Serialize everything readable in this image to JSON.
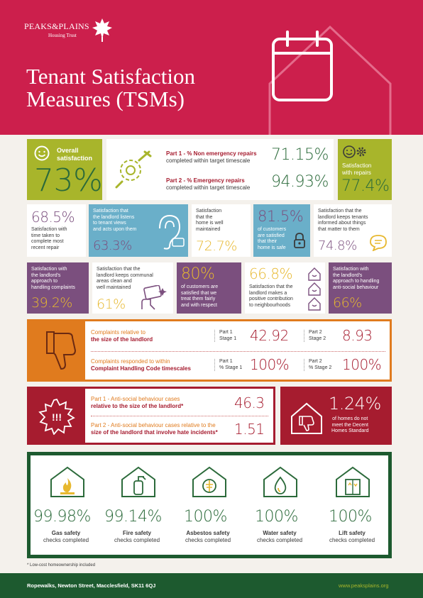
{
  "header": {
    "logo_brand": "PEAKS&PLAINS",
    "logo_sub": "Housing Trust",
    "title_line1": "Tenant Satisfaction",
    "title_line2": "Measures (TSMs)"
  },
  "overall": {
    "label": "Overall satisfaction",
    "value": "73%"
  },
  "repairs": {
    "part1_label_a": "Part 1 - % Non emergency repairs",
    "part1_label_b": "completed within target timescale",
    "part1_value": "71.15%",
    "part2_label_a": "Part 2 - % Emergency repairs",
    "part2_label_b": "completed within target timescale",
    "part2_value": "94.93%"
  },
  "with_repairs": {
    "label_a": "Satisfaction",
    "label_b": "with repairs",
    "value": "77.4%"
  },
  "row2": {
    "time_repair": {
      "value": "68.5%",
      "label_a": "Satisfaction with",
      "label_b": "time taken to",
      "label_c": "complete most",
      "label_d": "recent repair"
    },
    "listens": {
      "label_a": "Satisfaction that",
      "label_b": "the landlord listens",
      "label_c": "to tenant views",
      "label_d": "and acts upon them",
      "value": "63.3%"
    },
    "maintained": {
      "label_a": "Satisfaction",
      "label_b": "that the",
      "label_c": "home is well",
      "label_d": "maintained",
      "value": "72.7%"
    },
    "safe": {
      "value": "81.5%",
      "label_a": "of customers",
      "label_b": "are satisfied",
      "label_c": "that their",
      "label_d": "home is safe"
    },
    "informed": {
      "label_a": "Satisfaction that the",
      "label_b": "landlord keeps tenants",
      "label_c": "informed about things",
      "label_d": "that matter to them",
      "value": "74.8%"
    }
  },
  "row3": {
    "complaints": {
      "label_a": "Satisfaction with",
      "label_b": "the landlord's",
      "label_c": "approach to",
      "label_d": "handling complaints",
      "value": "39.2%"
    },
    "communal": {
      "label_a": "Satisfaction that the",
      "label_b": "landlord keeps communal",
      "label_c": "areas clean and",
      "label_d": "well maintained",
      "value": "61%"
    },
    "fairly": {
      "value": "80%",
      "label_a": "of customers are",
      "label_b": "satisfied that we",
      "label_c": "treat them fairly",
      "label_d": "and with respect"
    },
    "neighbourhoods": {
      "value": "66.8%",
      "label_a": "Satisfaction that the",
      "label_b": "landlord makes a",
      "label_c": "positive contribution",
      "label_d": "to neighbourhoods"
    },
    "asb": {
      "label_a": "Satisfaction with",
      "label_b": "the landlord's",
      "label_c": "approach to handling",
      "label_d": "anti-social behaviour",
      "value": "66%"
    }
  },
  "complaints_panel": {
    "row1_label_a": "Complaints relative to",
    "row1_label_b": "the size of the landlord",
    "row1_p1_a": "Part 1",
    "row1_p1_b": "Stage 1",
    "row1_v1": "42.92",
    "row1_p2_a": "Part 2",
    "row1_p2_b": "Stage 2",
    "row1_v2": "8.93",
    "row2_label_a": "Complaints responded to within",
    "row2_label_b": "Complaint Handling Code timescales",
    "row2_p1_a": "Part 1",
    "row2_p1_b": "% Stage 1",
    "row2_v1": "100%",
    "row2_p2_a": "Part 2",
    "row2_p2_b": "% Stage 2",
    "row2_v2": "100%"
  },
  "asb_panel": {
    "row1_label_a": "Part 1 - Anti-social behaviour cases",
    "row1_label_b": "relative to the size of the landlord*",
    "row1_value": "46.3",
    "row2_label_a": "Part 2 - Anti-social behaviour cases relative to the",
    "row2_label_b": "size of the landlord that involve hate incidents*",
    "row2_value": "1.51"
  },
  "decent_homes": {
    "value": "1.24%",
    "label_a": "of homes do not",
    "label_b": "meet the Decent",
    "label_c": "Homes Standard"
  },
  "safety": [
    {
      "value": "99.98%",
      "label_a": "Gas safety",
      "label_b": "checks completed"
    },
    {
      "value": "99.14%",
      "label_a": "Fire safety",
      "label_b": "checks completed"
    },
    {
      "value": "100%",
      "label_a": "Asbestos safety",
      "label_b": "checks completed"
    },
    {
      "value": "100%",
      "label_a": "Water safety",
      "label_b": "checks completed"
    },
    {
      "value": "100%",
      "label_a": "Lift safety",
      "label_b": "checks completed"
    }
  ],
  "footnote": "* Low-cost homeownership included",
  "footer": {
    "address": "Ropewalks, Newton Street, Macclesfield, SK11 6QJ",
    "url": "www.peaksplains.org"
  },
  "colors": {
    "header": "#cc1f4c",
    "green": "#a8b52b",
    "blue": "#6aafc9",
    "purple": "#7b4f7e",
    "red": "#a61c2f",
    "orange": "#e07b1e",
    "footer": "#1d5a2f"
  }
}
